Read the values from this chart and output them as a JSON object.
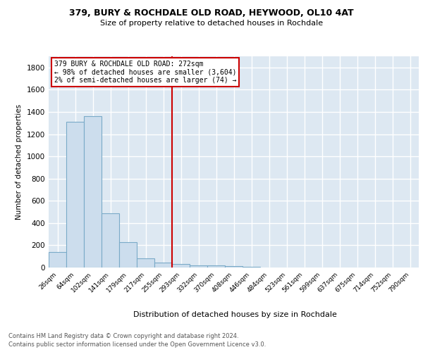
{
  "title1": "379, BURY & ROCHDALE OLD ROAD, HEYWOOD, OL10 4AT",
  "title2": "Size of property relative to detached houses in Rochdale",
  "xlabel": "Distribution of detached houses by size in Rochdale",
  "ylabel": "Number of detached properties",
  "bin_labels": [
    "26sqm",
    "64sqm",
    "102sqm",
    "141sqm",
    "179sqm",
    "217sqm",
    "255sqm",
    "293sqm",
    "332sqm",
    "370sqm",
    "408sqm",
    "446sqm",
    "484sqm",
    "523sqm",
    "561sqm",
    "599sqm",
    "637sqm",
    "675sqm",
    "714sqm",
    "752sqm",
    "790sqm"
  ],
  "bar_heights": [
    140,
    1310,
    1360,
    490,
    230,
    85,
    45,
    30,
    20,
    20,
    15,
    5,
    0,
    0,
    0,
    0,
    0,
    0,
    0,
    0,
    0
  ],
  "bar_color": "#ccdded",
  "bar_edge_color": "#7aaac8",
  "red_line_x": 6.5,
  "annotation_lines": [
    "379 BURY & ROCHDALE OLD ROAD: 272sqm",
    "← 98% of detached houses are smaller (3,604)",
    "2% of semi-detached houses are larger (74) →"
  ],
  "annotation_box_edge": "#cc0000",
  "ylim": [
    0,
    1900
  ],
  "yticks": [
    0,
    200,
    400,
    600,
    800,
    1000,
    1200,
    1400,
    1600,
    1800
  ],
  "footer_line1": "Contains HM Land Registry data © Crown copyright and database right 2024.",
  "footer_line2": "Contains public sector information licensed under the Open Government Licence v3.0.",
  "bg_color": "#dde8f2",
  "grid_color": "#ffffff"
}
